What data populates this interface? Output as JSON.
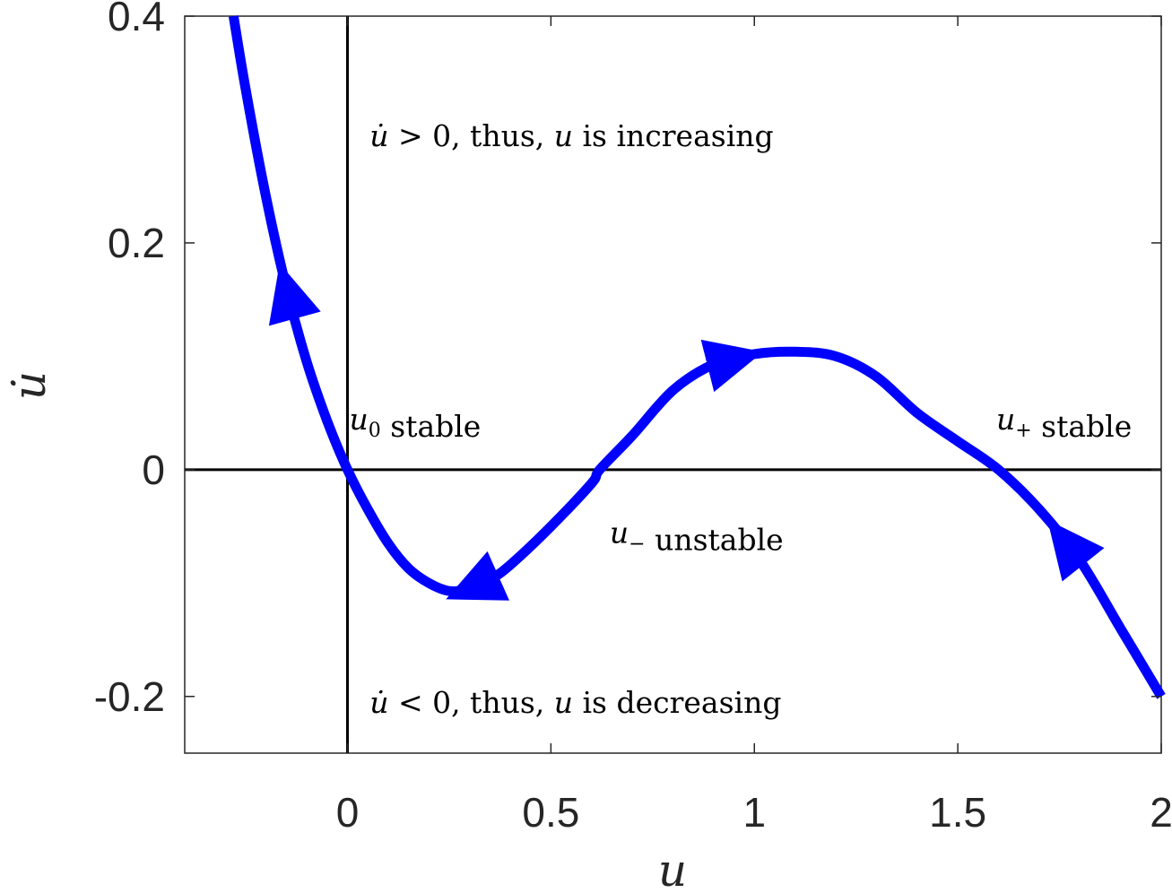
{
  "chart_data": {
    "type": "line",
    "xlabel": "u",
    "ylabel": "u̇",
    "xlim": [
      -0.4,
      2
    ],
    "ylim": [
      -0.25,
      0.4
    ],
    "xticks": [
      0,
      0.5,
      1,
      1.5,
      2
    ],
    "yticks": [
      -0.2,
      0,
      0.2,
      0.4
    ],
    "xtick_labels": [
      "0",
      "0.5",
      "1",
      "1.5",
      "2"
    ],
    "ytick_labels": [
      "-0.2",
      "0",
      "0.2",
      "0.4"
    ],
    "series": [
      {
        "color": "#0000ff",
        "x": [
          -0.28,
          -0.25,
          -0.2,
          -0.15,
          -0.1,
          -0.05,
          0,
          0.05,
          0.1,
          0.15,
          0.2,
          0.25,
          0.3,
          0.35,
          0.4,
          0.5,
          0.6,
          0.62,
          0.7,
          0.8,
          0.9,
          1.0,
          1.1,
          1.2,
          1.3,
          1.4,
          1.5,
          1.6,
          1.7,
          1.8,
          1.9,
          2.0
        ],
        "y": [
          0.4,
          0.335,
          0.24,
          0.16,
          0.095,
          0.043,
          0.0,
          -0.035,
          -0.065,
          -0.087,
          -0.1,
          -0.107,
          -0.105,
          -0.097,
          -0.084,
          -0.05,
          -0.012,
          0.0,
          0.03,
          0.07,
          0.093,
          0.102,
          0.104,
          0.1,
          0.082,
          0.05,
          0.025,
          0.0,
          -0.035,
          -0.08,
          -0.14,
          -0.2
        ]
      }
    ],
    "arrows": [
      {
        "x": -0.15,
        "y": 0.17,
        "direction": "left"
      },
      {
        "x": 0.3,
        "y": -0.11,
        "direction": "left"
      },
      {
        "x": 0.96,
        "y": 0.1,
        "direction": "right"
      },
      {
        "x": 1.76,
        "y": -0.08,
        "direction": "left"
      }
    ],
    "reference_lines": [
      {
        "axis": "x",
        "value": 0
      },
      {
        "axis": "y",
        "value": 0
      }
    ],
    "annotations": [
      {
        "x": 0.05,
        "y": 0.295,
        "pre_italic": "u̇",
        "text": " > 0, thus, ",
        "mid_italic": "u",
        "post": " is increasing"
      },
      {
        "x": 0.0,
        "y": 0.045,
        "pre_italic": "u",
        "sub": "0",
        "post": " stable"
      },
      {
        "x": 1.59,
        "y": 0.045,
        "pre_italic": "u",
        "sub": "+",
        "post": " stable"
      },
      {
        "x": 0.64,
        "y": -0.055,
        "pre_italic": "u",
        "sub": "−",
        "post": " unstable"
      },
      {
        "x": 0.05,
        "y": -0.205,
        "pre_italic": "u̇",
        "text": " < 0, thus, ",
        "mid_italic": "u",
        "post": " is decreasing"
      }
    ],
    "grid": false,
    "legend": "none"
  }
}
